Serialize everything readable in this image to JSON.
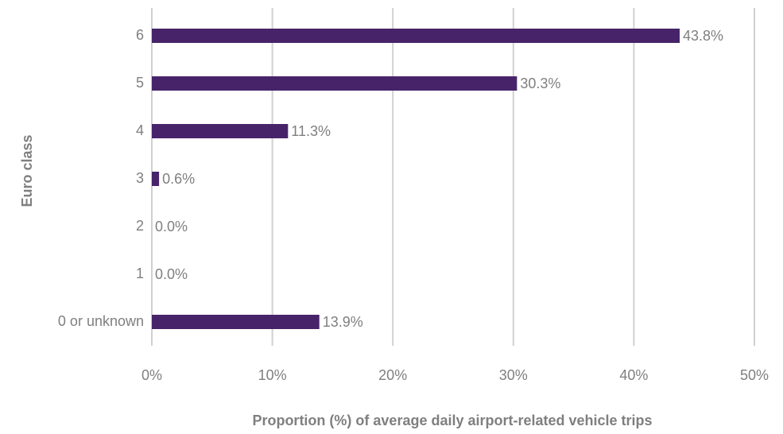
{
  "chart_data": {
    "type": "bar",
    "orientation": "horizontal",
    "x_label": "Proportion (%) of average daily airport-related vehicle trips",
    "y_label": "Euro class",
    "categories": [
      "6",
      "5",
      "4",
      "3",
      "2",
      "1",
      "0 or unknown"
    ],
    "values": [
      43.8,
      30.3,
      11.3,
      0.6,
      0.0,
      0.0,
      13.9
    ],
    "value_labels": [
      "43.8%",
      "30.3%",
      "11.3%",
      "0.6%",
      "0.0%",
      "0.0%",
      "13.9%"
    ],
    "color": "#472469",
    "xlim": [
      0,
      50
    ],
    "xticks": [
      {
        "value": 0,
        "label": "0%"
      },
      {
        "value": 10,
        "label": "10%"
      },
      {
        "value": 20,
        "label": "20%"
      },
      {
        "value": 30,
        "label": "30%"
      },
      {
        "value": 40,
        "label": "40%"
      },
      {
        "value": 50,
        "label": "50%"
      }
    ],
    "grid": true
  }
}
